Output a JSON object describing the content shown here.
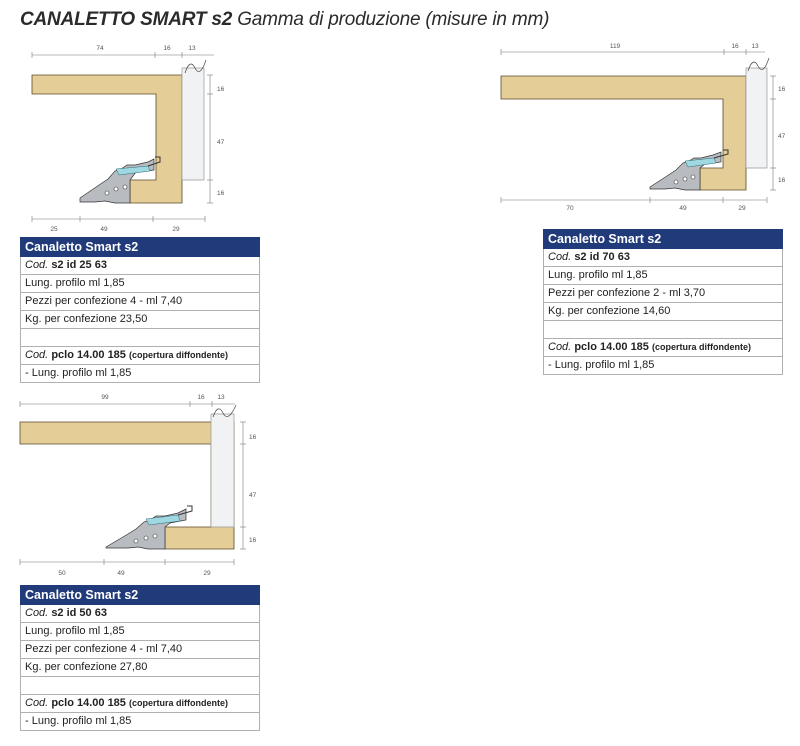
{
  "page": {
    "title_main": "CANALETTO SMART  s2",
    "title_rest": " Gamma di produzione  (misure in mm)"
  },
  "colors": {
    "header_bg": "#213a7a",
    "board": "#e4cd96",
    "metal": "#b8bcc0"
  },
  "drawings": {
    "d1": {
      "top": [
        "74",
        "16",
        "13"
      ],
      "right": [
        "16",
        "47",
        "16"
      ],
      "bottom": [
        "25",
        "49",
        "29"
      ]
    },
    "d2": {
      "top": [
        "119",
        "16",
        "13"
      ],
      "right": [
        "16",
        "47",
        "16"
      ],
      "bottom": [
        "70",
        "49",
        "29"
      ]
    },
    "d3": {
      "top": [
        "99",
        "16",
        "13"
      ],
      "right": [
        "16",
        "47",
        "16"
      ],
      "bottom": [
        "50",
        "49",
        "29"
      ]
    }
  },
  "tables": {
    "t1": {
      "header": "Canaletto Smart s2",
      "cod_prefix": "Cod.",
      "code": "s2 id 25 63",
      "rows": [
        "Lung. profilo ml 1,85",
        "Pezzi per confezione 4 - ml 7,40",
        "Kg. per confezione 23,50"
      ],
      "cover_code": "pclo 14.00 185",
      "cover_note": "(copertura diffondente)",
      "cover_detail": " -  Lung. profilo ml 1,85"
    },
    "t2": {
      "header": "Canaletto Smart s2",
      "cod_prefix": "Cod.",
      "code": "s2 id 70 63",
      "rows": [
        "Lung. profilo ml 1,85",
        "Pezzi per confezione 2 - ml 3,70",
        "Kg. per confezione 14,60"
      ],
      "cover_code": "pclo 14.00 185",
      "cover_note": "(copertura diffondente)",
      "cover_detail": " -  Lung. profilo ml 1,85"
    },
    "t3": {
      "header": "Canaletto Smart s2",
      "cod_prefix": "Cod.",
      "code": "s2 id 50 63",
      "rows": [
        "Lung. profilo ml 1,85",
        "Pezzi per confezione 4 - ml 7,40",
        "Kg. per confezione 27,80"
      ],
      "cover_code": "pclo 14.00 185",
      "cover_note": "(copertura diffondente)",
      "cover_detail": " -  Lung. profilo ml 1,85"
    }
  }
}
